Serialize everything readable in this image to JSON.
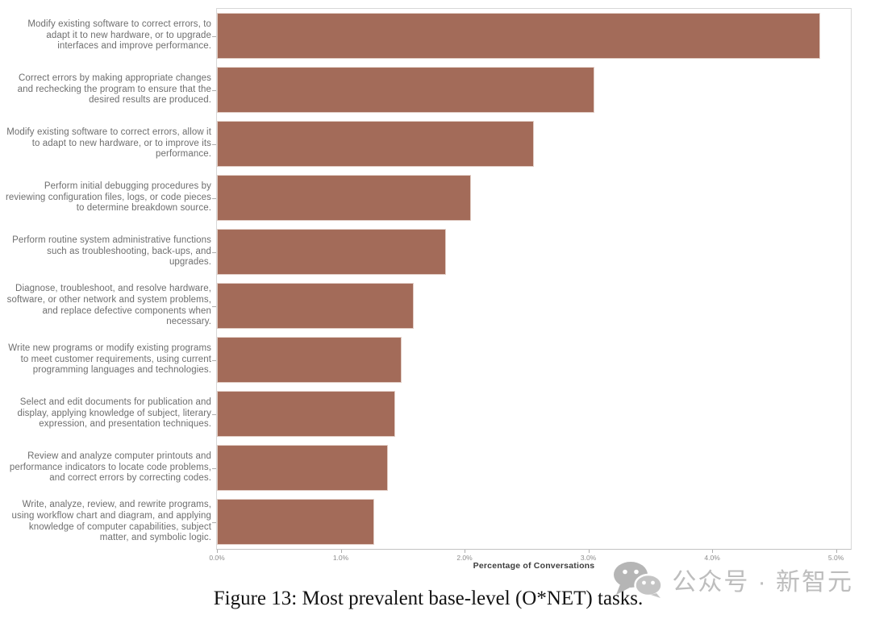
{
  "chart_data": {
    "type": "bar",
    "orientation": "horizontal",
    "title": "",
    "xlabel": "Percentage of Conversations",
    "ylabel": "",
    "xlim": [
      0,
      5.12
    ],
    "grid": false,
    "bar_color": "#A36B59",
    "categories": [
      "Modify existing software to correct errors, to adapt it to new hardware, or to upgrade interfaces and improve performance.",
      "Correct errors by making appropriate changes and rechecking the program to ensure that the desired results are produced.",
      "Modify existing software to correct errors, allow it to adapt to new hardware, or to improve its performance.",
      "Perform initial debugging procedures by reviewing configuration files, logs, or code pieces to determine breakdown source.",
      "Perform routine system administrative functions such as troubleshooting, back-ups, and upgrades.",
      "Diagnose, troubleshoot, and resolve hardware, software, or other network and system problems, and replace defective components when necessary.",
      "Write new programs or modify existing programs to meet customer requirements, using current programming languages and technologies.",
      "Select and edit documents for publication and display, applying knowledge of subject, literary expression, and presentation techniques.",
      "Review and analyze computer printouts and performance indicators to locate code problems, and correct errors by correcting codes.",
      "Write, analyze, review, and rewrite programs, using workflow chart and diagram, and applying knowledge of computer capabilities, subject matter, and symbolic logic."
    ],
    "values": [
      4.87,
      3.05,
      2.56,
      2.05,
      1.85,
      1.59,
      1.49,
      1.44,
      1.38,
      1.27
    ],
    "x_ticks": [
      {
        "value": 0,
        "label": "0.0%"
      },
      {
        "value": 1,
        "label": "1.0%"
      },
      {
        "value": 2,
        "label": "2.0%"
      },
      {
        "value": 3,
        "label": "3.0%"
      },
      {
        "value": 4,
        "label": "4.0%"
      },
      {
        "value": 5,
        "label": "5.0%"
      }
    ]
  },
  "caption": "Figure 13: Most prevalent base-level (O*NET) tasks.",
  "watermark": {
    "icon": "wechat-icon",
    "text": "公众号 · 新智元",
    "color": "#bdbdbd"
  }
}
